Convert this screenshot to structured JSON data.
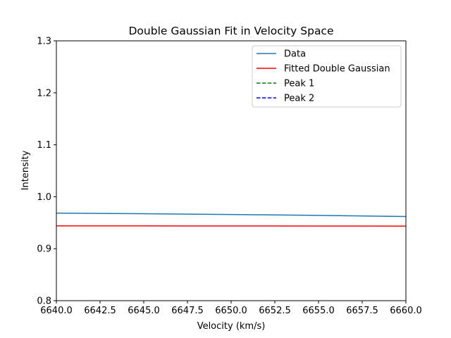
{
  "chart_data": {
    "type": "line",
    "title": "Double Gaussian Fit in Velocity Space",
    "xlabel": "Velocity (km/s)",
    "ylabel": "Intensity",
    "xlim": [
      6640,
      6660
    ],
    "ylim": [
      0.8,
      1.3
    ],
    "x_ticks": [
      "6640.0",
      "6642.5",
      "6645.0",
      "6647.5",
      "6650.0",
      "6652.5",
      "6655.0",
      "6657.5",
      "6660.0"
    ],
    "y_ticks": [
      "0.8",
      "0.9",
      "1.0",
      "1.1",
      "1.2",
      "1.3"
    ],
    "grid": false,
    "legend_position": "top-right",
    "series": [
      {
        "name": "Data",
        "color": "#1f77b4",
        "linestyle": "solid",
        "x": [
          6640,
          6645,
          6650,
          6655,
          6660
        ],
        "y": [
          0.9685,
          0.9673,
          0.9659,
          0.9641,
          0.9619
        ]
      },
      {
        "name": "Fitted Double Gaussian",
        "color": "#ff0000",
        "linestyle": "solid",
        "x": [
          6640,
          6645,
          6650,
          6655,
          6660
        ],
        "y": [
          0.944,
          0.9439,
          0.9438,
          0.9437,
          0.9435
        ]
      },
      {
        "name": "Peak 1",
        "color": "#008000",
        "linestyle": "dashed",
        "x": [],
        "y": []
      },
      {
        "name": "Peak 2",
        "color": "#0000ff",
        "linestyle": "dashed",
        "x": [],
        "y": []
      }
    ]
  }
}
